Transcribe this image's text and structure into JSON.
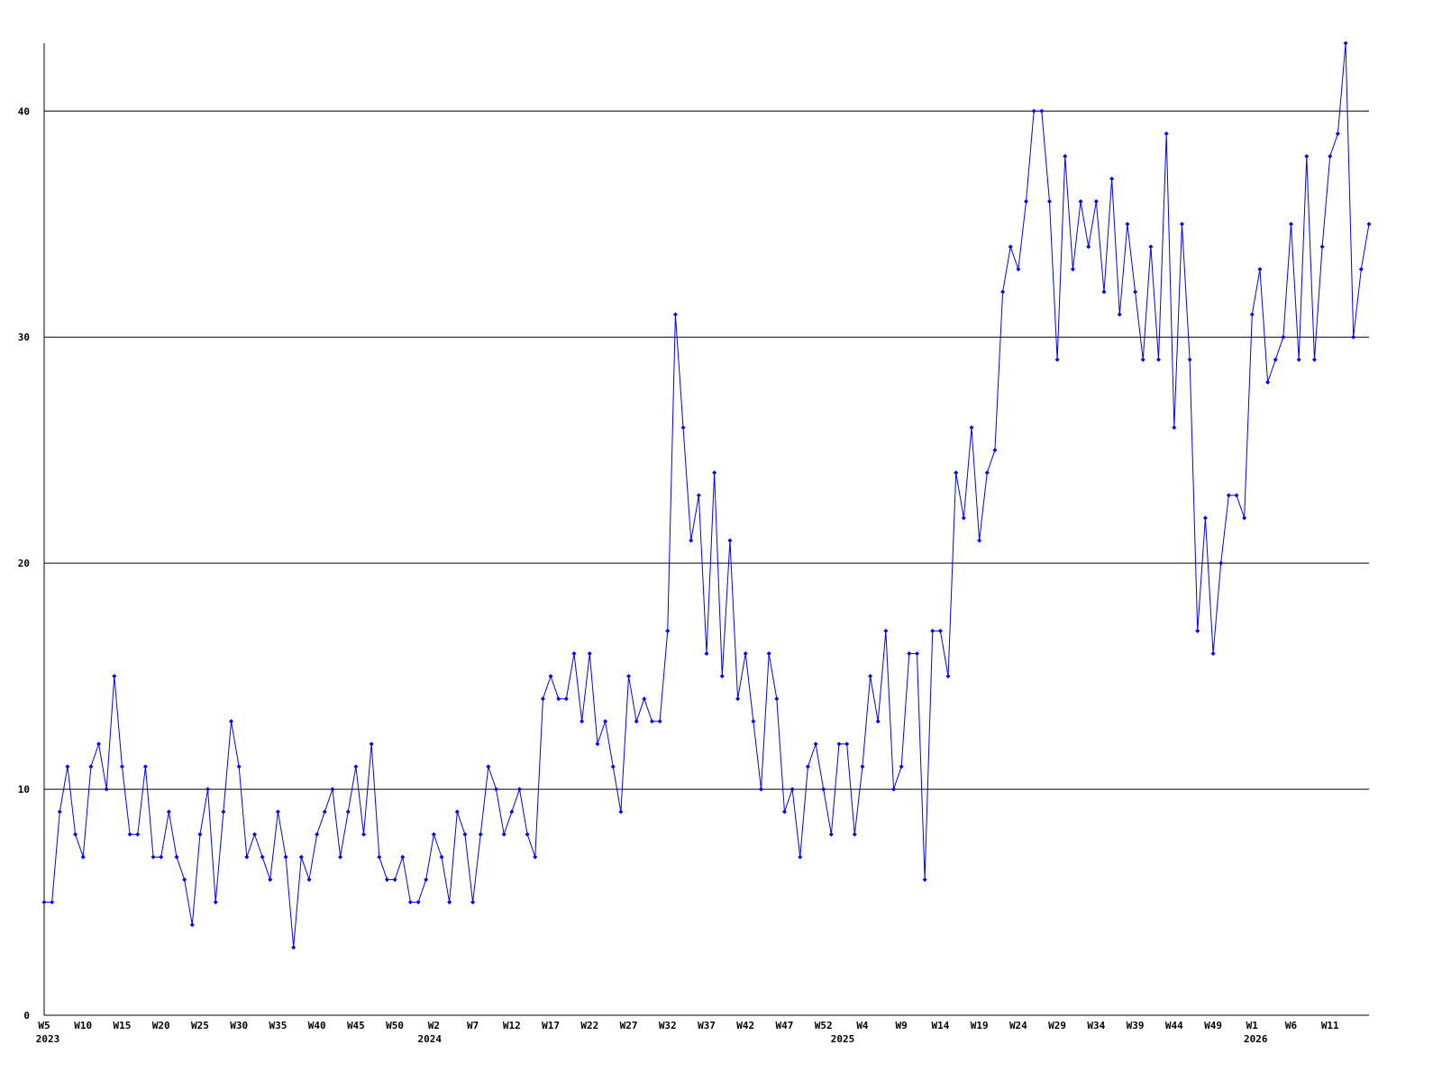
{
  "chart_data": {
    "type": "line",
    "categories": [
      "W5",
      null,
      null,
      null,
      null,
      "W10",
      null,
      null,
      null,
      null,
      "W15",
      null,
      null,
      null,
      null,
      "W20",
      null,
      null,
      null,
      null,
      "W25",
      null,
      null,
      null,
      null,
      "W30",
      null,
      null,
      null,
      null,
      "W35",
      null,
      null,
      null,
      null,
      "W40",
      null,
      null,
      null,
      null,
      "W45",
      null,
      null,
      null,
      null,
      "W50",
      null,
      null,
      null,
      null,
      "W2",
      null,
      null,
      null,
      null,
      "W7",
      null,
      null,
      null,
      null,
      "W12",
      null,
      null,
      null,
      null,
      "W17",
      null,
      null,
      null,
      null,
      "W22",
      null,
      null,
      null,
      null,
      "W27",
      null,
      null,
      null,
      null,
      "W32",
      null,
      null,
      null,
      null,
      "W37",
      null,
      null,
      null,
      null,
      "W42",
      null,
      null,
      null,
      null,
      "W47",
      null,
      null,
      null,
      null,
      "W52",
      null,
      null,
      null,
      null,
      "W4",
      null,
      null,
      null,
      null,
      "W9",
      null,
      null,
      null,
      null,
      "W14",
      null,
      null,
      null,
      null,
      "W19",
      null,
      null,
      null,
      null,
      "W24",
      null,
      null,
      null,
      null,
      "W29",
      null,
      null,
      null,
      null,
      "W34",
      null,
      null,
      null,
      null,
      "W39",
      null,
      null,
      null,
      null,
      "W44",
      null,
      null,
      null,
      null,
      "W49",
      null,
      null,
      null,
      null,
      "W1",
      null,
      null,
      null,
      null,
      "W6",
      null,
      null,
      null,
      null,
      "W11",
      null,
      null,
      null,
      null,
      null
    ],
    "years": [
      "2023",
      null,
      null,
      null,
      null,
      null,
      null,
      null,
      null,
      null,
      null,
      null,
      null,
      null,
      null,
      null,
      null,
      null,
      null,
      null,
      null,
      null,
      null,
      null,
      null,
      null,
      null,
      null,
      null,
      null,
      null,
      null,
      null,
      null,
      null,
      null,
      null,
      null,
      null,
      null,
      null,
      null,
      null,
      null,
      null,
      null,
      null,
      null,
      null,
      "2024",
      null,
      null,
      null,
      null,
      null,
      null,
      null,
      null,
      null,
      null,
      null,
      null,
      null,
      null,
      null,
      null,
      null,
      null,
      null,
      null,
      null,
      null,
      null,
      null,
      null,
      null,
      null,
      null,
      null,
      null,
      null,
      null,
      null,
      null,
      null,
      null,
      null,
      null,
      null,
      null,
      null,
      null,
      null,
      null,
      null,
      null,
      null,
      null,
      null,
      null,
      null,
      null,
      "2025",
      null,
      null,
      null,
      null,
      null,
      null,
      null,
      null,
      null,
      null,
      null,
      null,
      null,
      null,
      null,
      null,
      null,
      null,
      null,
      null,
      null,
      null,
      null,
      null,
      null,
      null,
      null,
      null,
      null,
      null,
      null,
      null,
      null,
      null,
      null,
      null,
      null,
      null,
      null,
      null,
      null,
      null,
      null,
      null,
      null,
      null,
      null,
      null,
      null,
      null,
      null,
      null,
      "2026",
      null,
      null,
      null,
      null,
      null,
      null,
      null,
      null,
      null,
      null,
      null,
      null,
      null,
      null,
      null
    ],
    "series": [
      {
        "color": "#0000ff",
        "values": [
          5,
          5,
          9,
          11,
          8,
          7,
          11,
          12,
          10,
          15,
          11,
          8,
          8,
          11,
          7,
          7,
          9,
          7,
          6,
          4,
          8,
          10,
          5,
          9,
          13,
          11,
          7,
          8,
          7,
          6,
          9,
          7,
          3,
          7,
          6,
          8,
          9,
          10,
          7,
          9,
          11,
          8,
          12,
          7,
          6,
          6,
          7,
          5,
          5,
          6,
          8,
          7,
          5,
          9,
          8,
          5,
          8,
          11,
          10,
          8,
          9,
          10,
          8,
          7,
          14,
          15,
          14,
          14,
          16,
          13,
          16,
          12,
          13,
          11,
          9,
          15,
          13,
          14,
          13,
          13,
          17,
          31,
          26,
          21,
          23,
          16,
          24,
          15,
          21,
          14,
          16,
          13,
          10,
          16,
          14,
          9,
          10,
          7,
          11,
          12,
          10,
          8,
          12,
          12,
          8,
          11,
          15,
          13,
          17,
          10,
          11,
          16,
          16,
          6,
          17,
          17,
          15,
          24,
          22,
          26,
          21,
          24,
          25,
          32,
          34,
          33,
          36,
          40,
          40,
          36,
          29,
          38,
          33,
          36,
          34,
          36,
          32,
          37,
          31,
          35,
          32,
          29,
          34,
          29,
          39,
          26,
          35,
          29,
          17,
          22,
          16,
          20,
          23,
          23,
          22,
          31,
          33,
          28,
          29,
          30,
          35,
          29,
          38,
          29,
          34,
          38,
          39,
          43,
          30,
          33,
          35
        ]
      }
    ],
    "ylim": [
      0,
      43
    ],
    "yticks": [
      0,
      10,
      20,
      30,
      40
    ],
    "grid": true
  }
}
